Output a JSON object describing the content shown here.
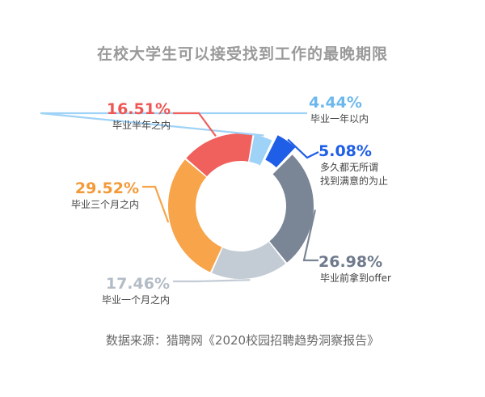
{
  "title": "在校大学生可以接受找到工作的最晚期限",
  "source": "数据来源：猎聘网《2020校园招聘趋势洞察报告》",
  "chart_data": {
    "type": "pie",
    "subtype": "donut",
    "title": "在校大学生可以接受找到工作的最晚期限",
    "slices": [
      {
        "label": "毕业一年以内",
        "value": 4.44,
        "display": "4.44%",
        "color": "#9fd2f7",
        "label_color": "#6cb8ee",
        "exploded": false
      },
      {
        "label": [
          "多久都无所谓",
          "找到满意的为止"
        ],
        "value": 5.08,
        "display": "5.08%",
        "color": "#1f5ee6",
        "label_color": "#1f5ee6",
        "exploded": true
      },
      {
        "label": "毕业前拿到offer",
        "value": 26.98,
        "display": "26.98%",
        "color": "#7a8596",
        "label_color": "#6f7a8c",
        "exploded": false
      },
      {
        "label": "毕业一个月之内",
        "value": 17.46,
        "display": "17.46%",
        "color": "#c3ccd5",
        "label_color": "#b3bcc6",
        "exploded": false
      },
      {
        "label": "毕业三个月之内",
        "value": 29.52,
        "display": "29.52%",
        "color": "#f7a44a",
        "label_color": "#f39a38",
        "exploded": false
      },
      {
        "label": "毕业半年之内",
        "value": 16.51,
        "display": "16.51%",
        "color": "#f0605d",
        "label_color": "#ee5755",
        "exploded": false
      }
    ]
  }
}
